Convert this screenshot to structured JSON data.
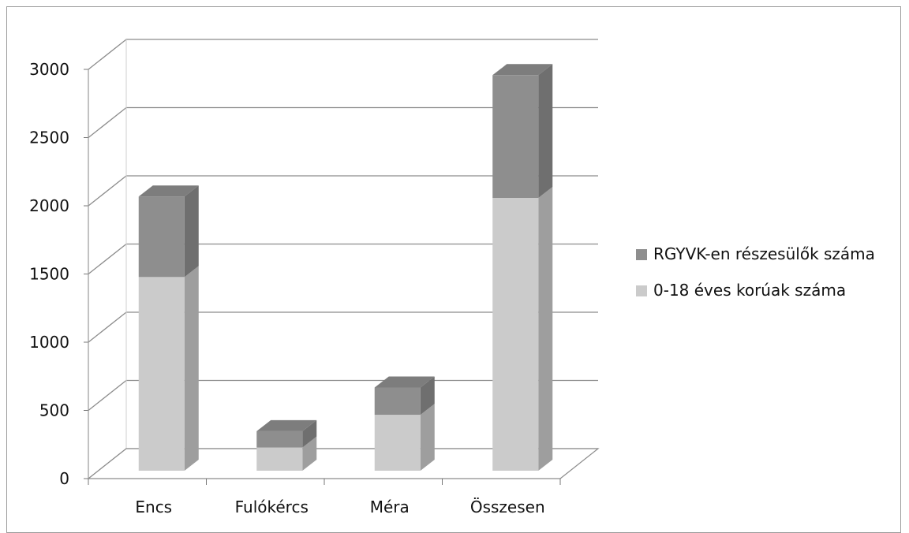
{
  "chart_data": {
    "type": "bar",
    "stacked": true,
    "three_d": true,
    "categories": [
      "Encs",
      "Fulókércs",
      "Méra",
      "Összesen"
    ],
    "series": [
      {
        "name": "0-18 éves korúak száma",
        "values": [
          1420,
          170,
          410,
          2000
        ],
        "color": "#cbcbcb"
      },
      {
        "name": "RGYVK-en részesülők száma",
        "values": [
          590,
          120,
          200,
          900
        ],
        "color": "#8e8e8e"
      }
    ],
    "ylim": [
      0,
      3000
    ],
    "yticks": [
      "0",
      "500",
      "1000",
      "1500",
      "2000",
      "2500",
      "3000"
    ],
    "grid": true,
    "legend_position": "right"
  }
}
